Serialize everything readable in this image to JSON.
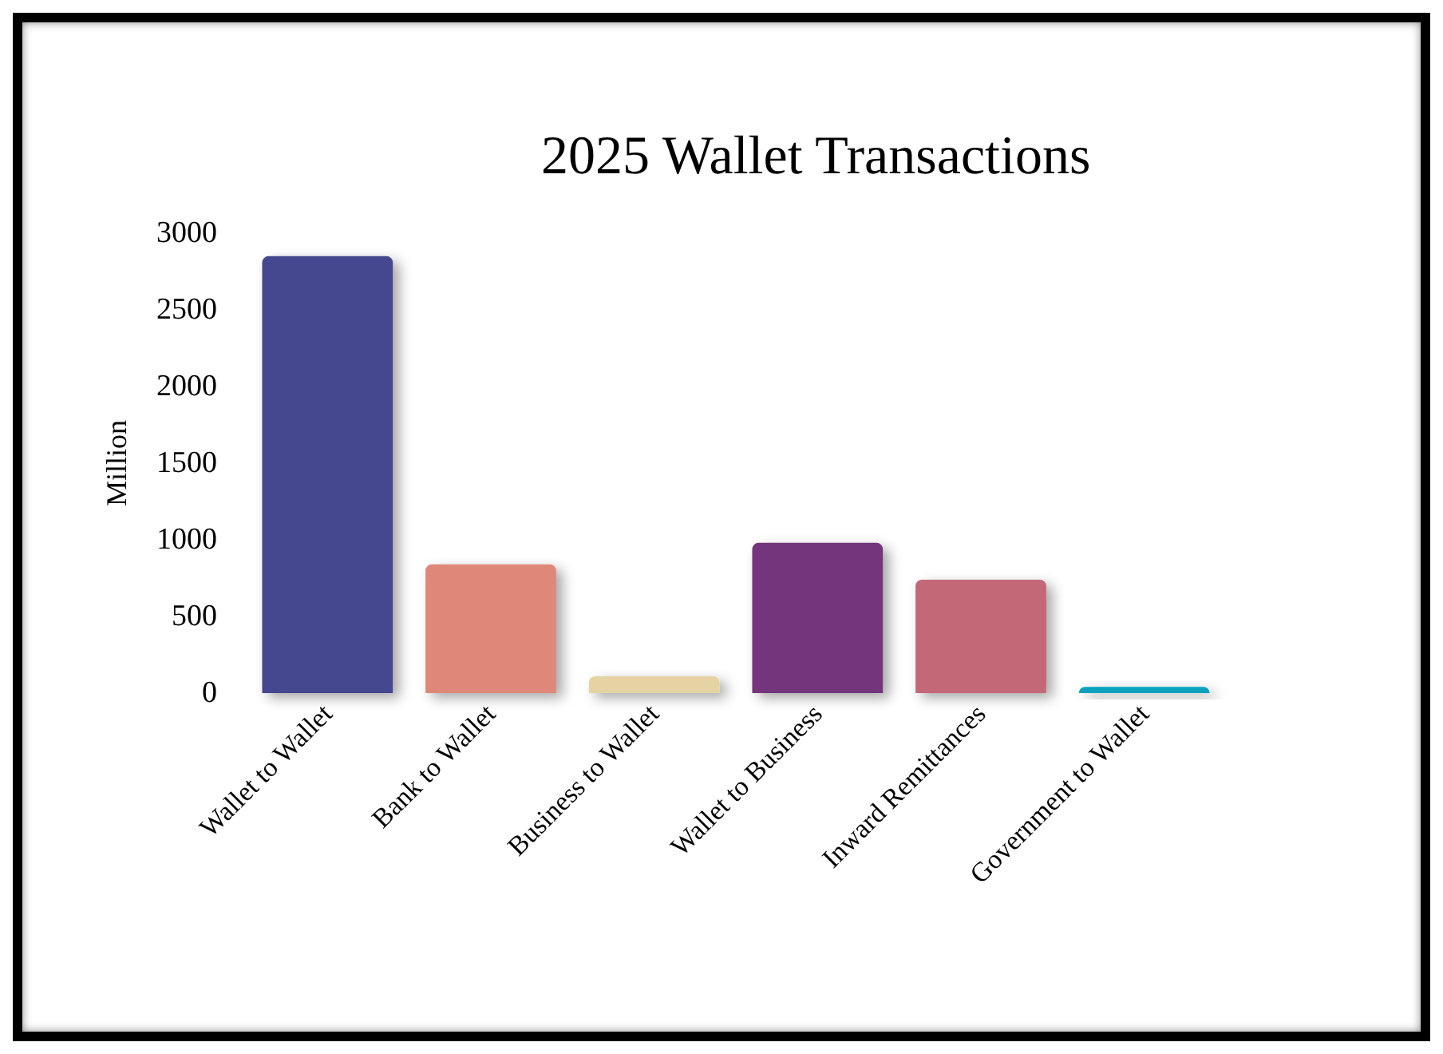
{
  "chart_data": {
    "type": "bar",
    "title": "2025 Wallet Transactions",
    "ylabel": "Million",
    "categories": [
      "Wallet to Wallet",
      "Bank to Wallet",
      "Business to Wallet",
      "Wallet to Business",
      "Inward Remittances",
      "Government to Wallet"
    ],
    "values": [
      2850,
      840,
      110,
      980,
      740,
      40
    ],
    "colors": [
      "#44478f",
      "#df8778",
      "#e6d3a3",
      "#74347b",
      "#c26876",
      "#07a1bd"
    ],
    "ylim": [
      0,
      3000
    ],
    "yticks": [
      0,
      500,
      1000,
      1500,
      2000,
      2500,
      3000
    ],
    "grid": false
  }
}
